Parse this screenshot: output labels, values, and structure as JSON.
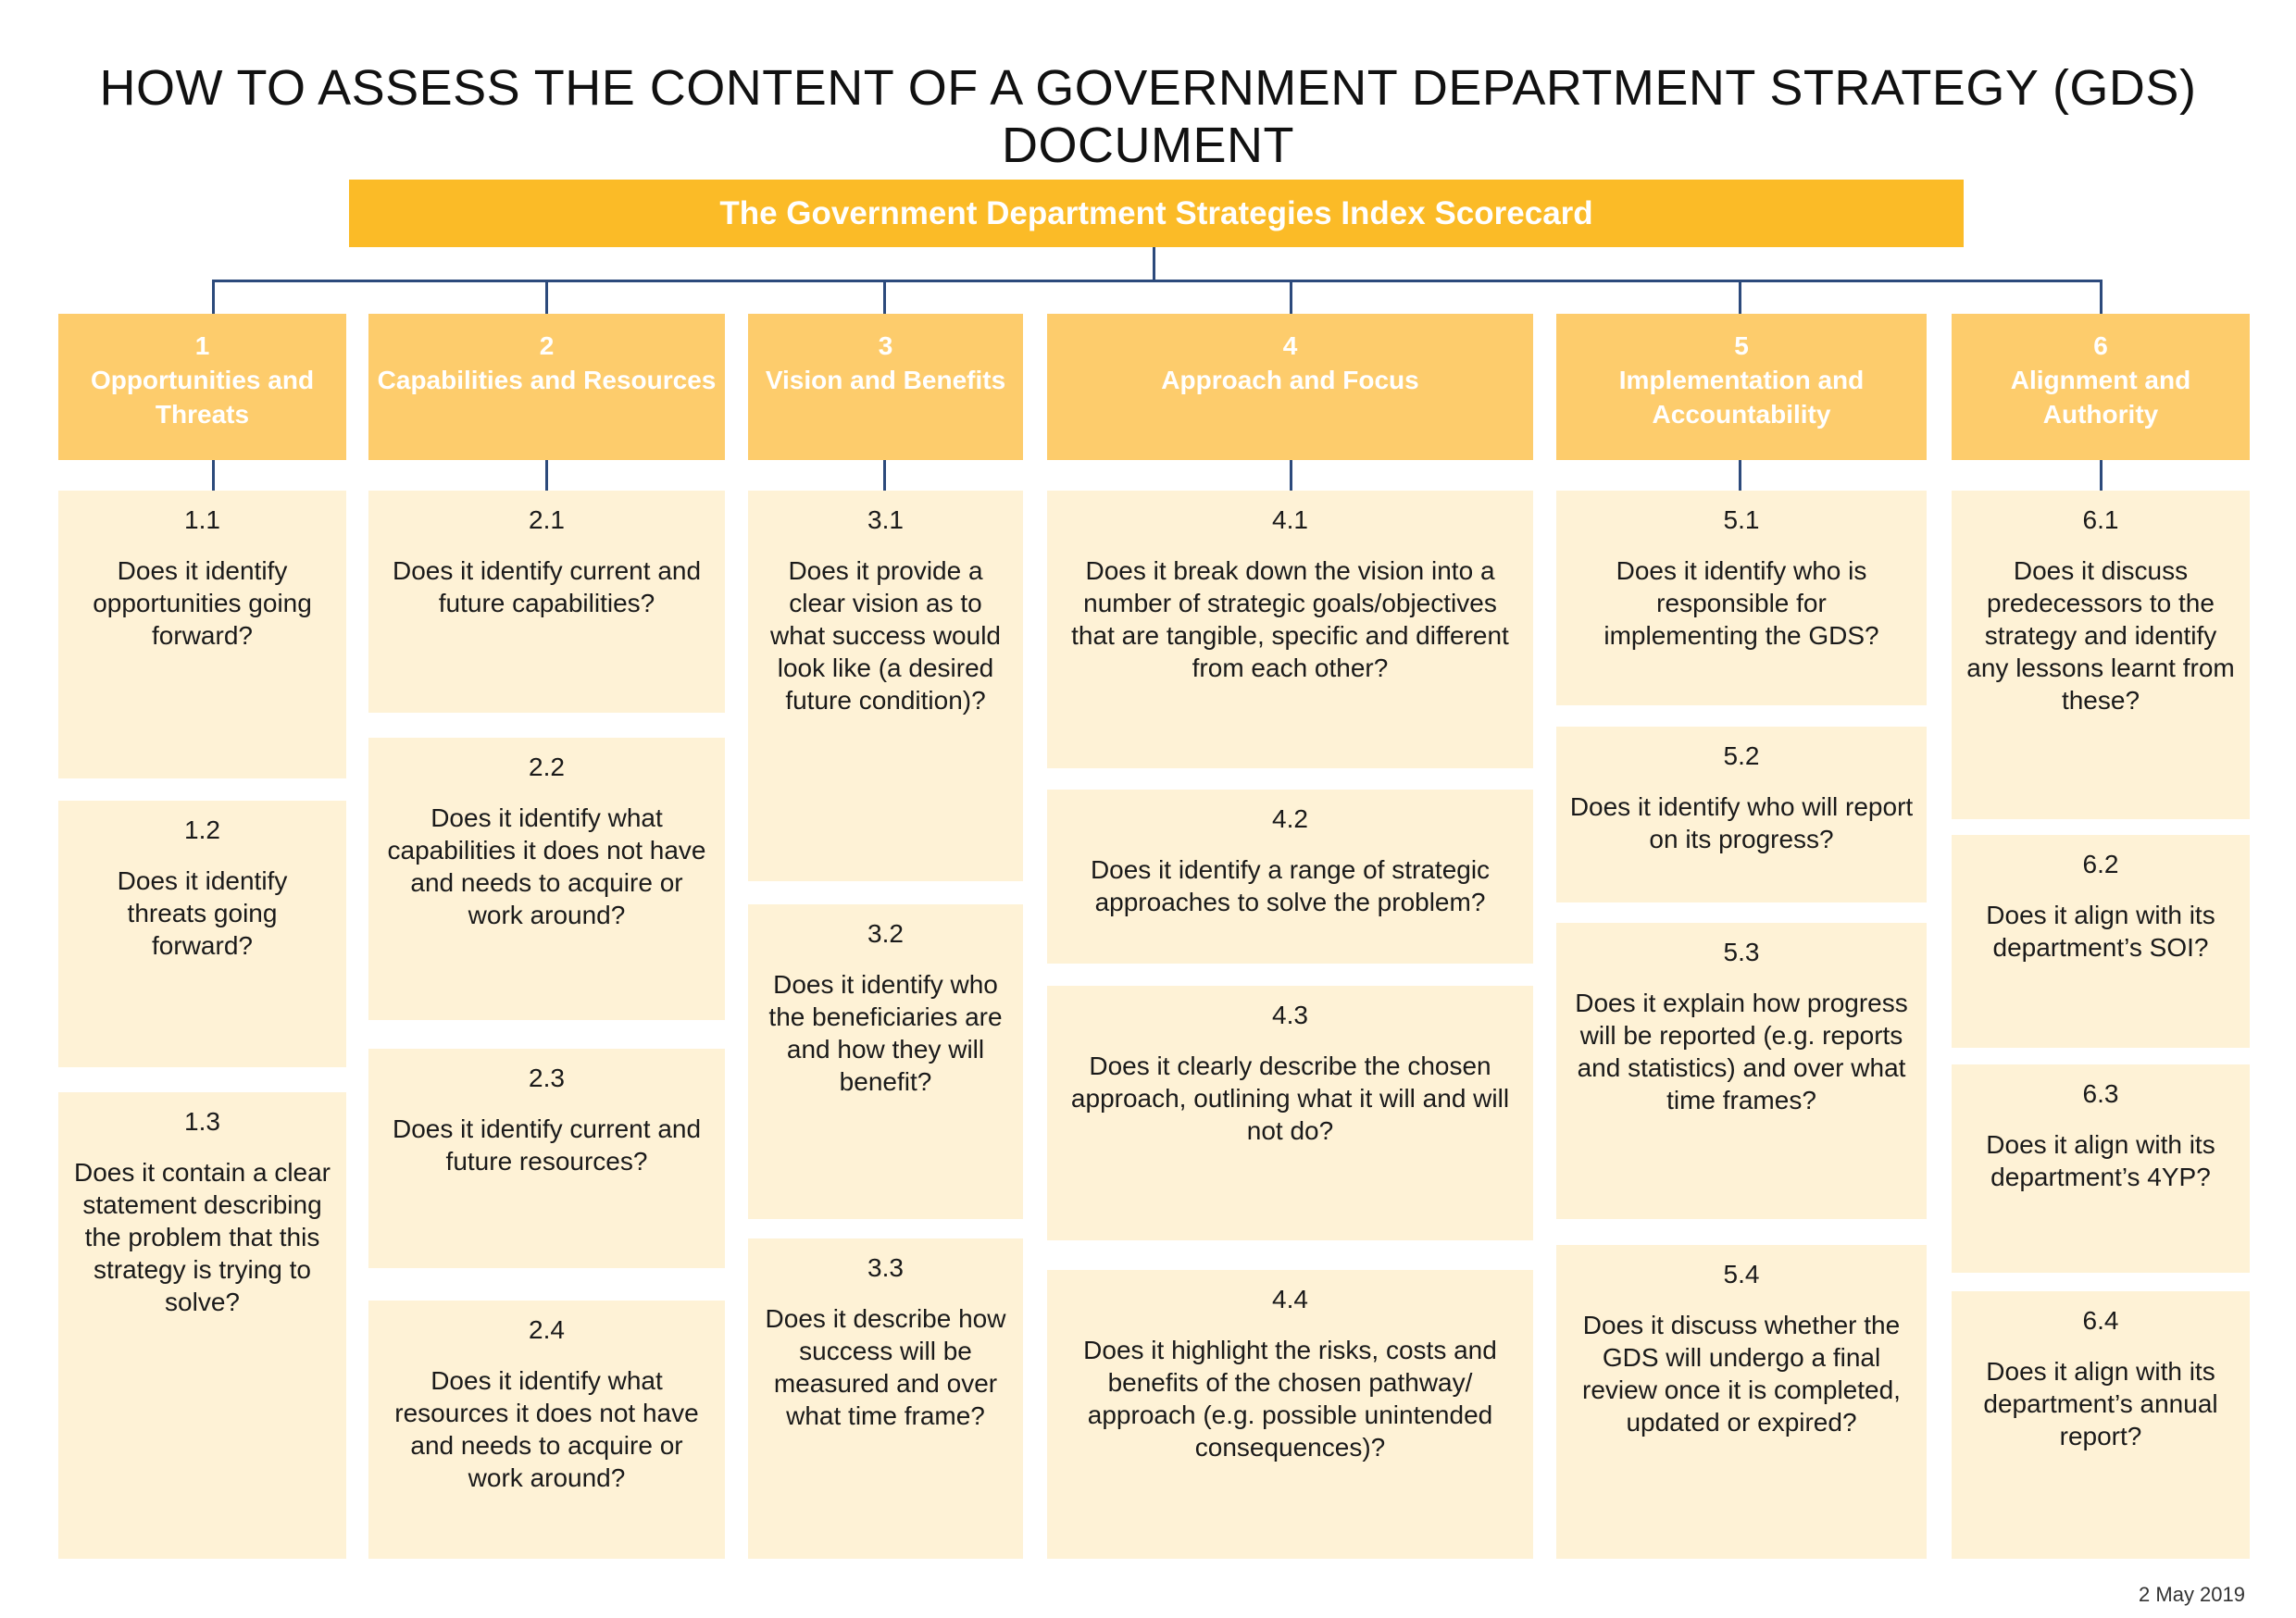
{
  "title": "HOW TO ASSESS THE CONTENT OF A GOVERNMENT DEPARTMENT STRATEGY (GDS) DOCUMENT",
  "banner": "The Government Department Strategies Index Scorecard",
  "colors": {
    "banner": "#fbbb27",
    "header": "#fdcc6c",
    "box": "#fef2d6",
    "connector": "#2c4a7c"
  },
  "columns": [
    {
      "num": "1",
      "title": "Opportunities and Threats",
      "items": [
        {
          "num": "1.1",
          "text": "Does it identify opportunities going forward?"
        },
        {
          "num": "1.2",
          "text": "Does it identify threats going forward?"
        },
        {
          "num": "1.3",
          "text": "Does it contain a clear statement describing the problem that this strategy is trying to solve?"
        }
      ]
    },
    {
      "num": "2",
      "title": "Capabilities and Resources",
      "items": [
        {
          "num": "2.1",
          "text": "Does it identify current and future capabilities?"
        },
        {
          "num": "2.2",
          "text": "Does it identify what capabilities it does not have and needs to acquire or work around?"
        },
        {
          "num": "2.3",
          "text": "Does it identify current and future resources?"
        },
        {
          "num": "2.4",
          "text": "Does it identify what resources it does not have and needs to acquire or work around?"
        }
      ]
    },
    {
      "num": "3",
      "title": "Vision and Benefits",
      "items": [
        {
          "num": "3.1",
          "text": "Does it provide a clear vision as to what success would look like (a desired future condition)?"
        },
        {
          "num": "3.2",
          "text": "Does it identify who the beneficiaries are and how they will benefit?"
        },
        {
          "num": "3.3",
          "text": "Does it describe how success will be measured and over what time frame?"
        }
      ]
    },
    {
      "num": "4",
      "title": "Approach and Focus",
      "items": [
        {
          "num": "4.1",
          "text": "Does it break down the vision into a number of strategic goals/objectives that are tangible, specific and different from each other?"
        },
        {
          "num": "4.2",
          "text": "Does it identify a range of strategic approaches to solve the problem?"
        },
        {
          "num": "4.3",
          "text": "Does it clearly describe the chosen approach, outlining what it will and will not do?"
        },
        {
          "num": "4.4",
          "text": "Does it highlight the risks, costs and benefits of the chosen pathway/ approach (e.g. possible unintended consequences)?"
        }
      ]
    },
    {
      "num": "5",
      "title": "Implementation and Accountability",
      "items": [
        {
          "num": "5.1",
          "text": "Does it identify who is responsible for implementing the GDS?"
        },
        {
          "num": "5.2",
          "text": "Does it identify who will report on its progress?"
        },
        {
          "num": "5.3",
          "text": "Does it explain how progress will be reported (e.g. reports and statistics) and over what time frames?"
        },
        {
          "num": "5.4",
          "text": "Does it discuss whether the GDS will undergo a final review once it is completed, updated or expired?"
        }
      ]
    },
    {
      "num": "6",
      "title": "Alignment and Authority",
      "items": [
        {
          "num": "6.1",
          "text": "Does it discuss predecessors to the strategy and identify any lessons learnt from these?"
        },
        {
          "num": "6.2",
          "text": "Does it align with its department’s SOI?"
        },
        {
          "num": "6.3",
          "text": "Does it align with its department’s 4YP?"
        },
        {
          "num": "6.4",
          "text": "Does it align with its department’s annual report?"
        }
      ]
    }
  ],
  "footer": {
    "date": "2 May 2019"
  }
}
